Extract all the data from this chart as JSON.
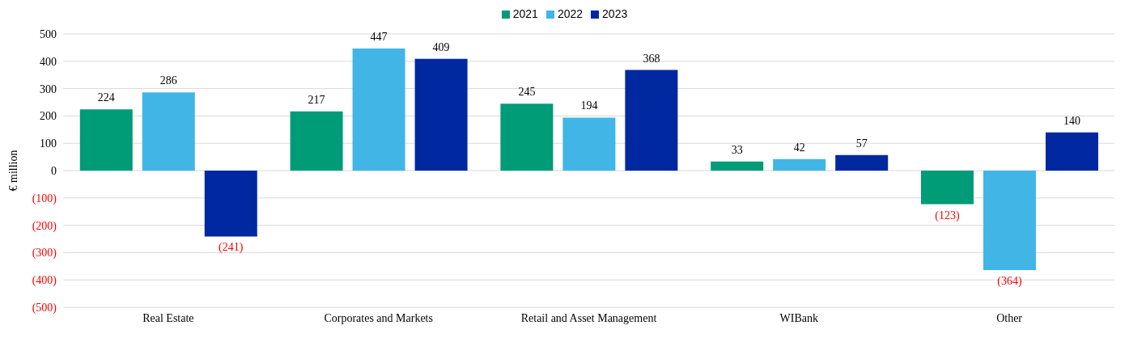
{
  "chart_data": {
    "type": "bar",
    "ylabel": "€ million",
    "categories": [
      "Real Estate",
      "Corporates and Markets",
      "Retail and Asset Management",
      "WIBank",
      "Other"
    ],
    "series": [
      {
        "name": "2021",
        "color": "#009b77",
        "values": [
          224,
          217,
          245,
          33,
          -123
        ],
        "value_labels": [
          "224",
          "217",
          "245",
          "33",
          "(123)"
        ]
      },
      {
        "name": "2022",
        "color": "#41b6e6",
        "values": [
          286,
          447,
          194,
          42,
          -364
        ],
        "value_labels": [
          "286",
          "447",
          "194",
          "42",
          "(364)"
        ]
      },
      {
        "name": "2023",
        "color": "#0028a0",
        "values": [
          -241,
          409,
          368,
          57,
          140
        ],
        "value_labels": [
          "(241)",
          "409",
          "368",
          "57",
          "140"
        ]
      }
    ],
    "ylim": [
      -500,
      500
    ],
    "yticks": [
      {
        "value": -500,
        "label": "(500)"
      },
      {
        "value": -400,
        "label": "(400)"
      },
      {
        "value": -300,
        "label": "(300)"
      },
      {
        "value": -200,
        "label": "(200)"
      },
      {
        "value": -100,
        "label": "(100)"
      },
      0,
      100,
      200,
      300,
      400,
      500
    ],
    "grid": "y",
    "legend": "top"
  }
}
